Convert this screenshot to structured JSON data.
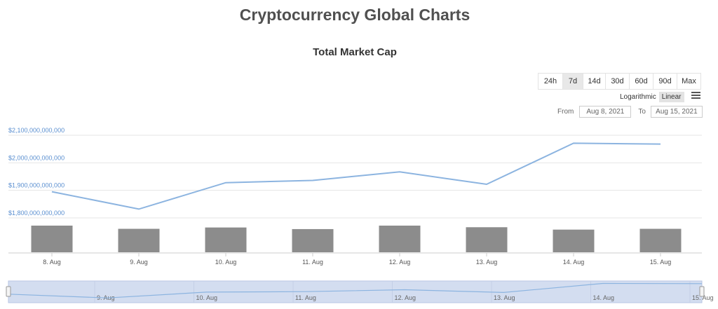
{
  "page": {
    "title": "Cryptocurrency Global Charts"
  },
  "controls": {
    "ranges": [
      "24h",
      "7d",
      "14d",
      "30d",
      "60d",
      "90d",
      "Max"
    ],
    "active_range": "7d",
    "scale_options": [
      "Logarithmic",
      "Linear"
    ],
    "active_scale": "Linear",
    "from_label": "From",
    "to_label": "To",
    "from_value": "Aug 8, 2021",
    "to_value": "Aug 15, 2021",
    "menu_icon": "hamburger-menu-icon"
  },
  "chart_data": {
    "type": "line",
    "title": "Total Market Cap",
    "x": [
      "8. Aug",
      "9. Aug",
      "10. Aug",
      "11. Aug",
      "12. Aug",
      "13. Aug",
      "14. Aug",
      "15. Aug"
    ],
    "series": [
      {
        "type": "line",
        "values": [
          1895000000000,
          1832000000000,
          1928000000000,
          1936000000000,
          1967000000000,
          1922000000000,
          2071000000000,
          2068000000000
        ]
      },
      {
        "type": "bar",
        "values": [
          100,
          88,
          93,
          87,
          100,
          94,
          85,
          88
        ]
      }
    ],
    "y_ticks": [
      "$1,800,000,000,000",
      "$1,900,000,000,000",
      "$2,000,000,000,000",
      "$2,100,000,000,000"
    ],
    "ylim": [
      1800000000000,
      2100000000000
    ],
    "navigator": {
      "x_labels": [
        "9. Aug",
        "10. Aug",
        "11. Aug",
        "12. Aug",
        "13. Aug",
        "14. Aug",
        "15. Aug"
      ]
    },
    "colors": {
      "line": "#8cb4e0",
      "bar": "#8c8c8c",
      "axis_text": "#5a8fd0",
      "navigator_fill": "#d3ddf0"
    }
  }
}
